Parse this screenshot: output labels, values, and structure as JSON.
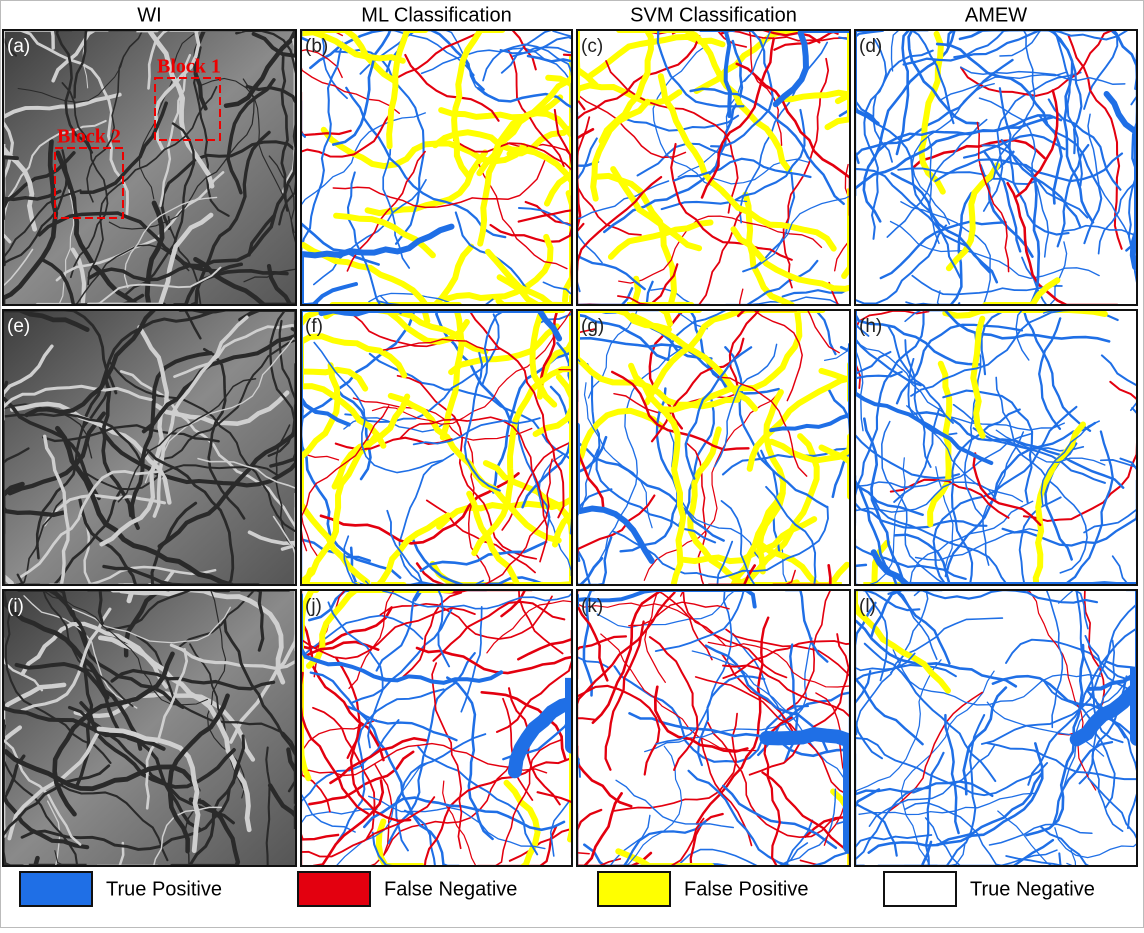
{
  "columns": [
    "WI",
    "ML Classification",
    "SVM Classification",
    "AMEW"
  ],
  "panels": [
    [
      "(a)",
      "(b)",
      "(c)",
      "(d)"
    ],
    [
      "(e)",
      "(f)",
      "(g)",
      "(h)"
    ],
    [
      "(i)",
      "(j)",
      "(k)",
      "(l)"
    ]
  ],
  "blocks": [
    "Block 1",
    "Block 2"
  ],
  "legend": [
    {
      "label": "True Positive",
      "color": "#1f6fe6"
    },
    {
      "label": "False Negative",
      "color": "#e3000f"
    },
    {
      "label": "False Positive",
      "color": "#ffff00"
    },
    {
      "label": "True Negative",
      "color": "#ffffff"
    }
  ]
}
